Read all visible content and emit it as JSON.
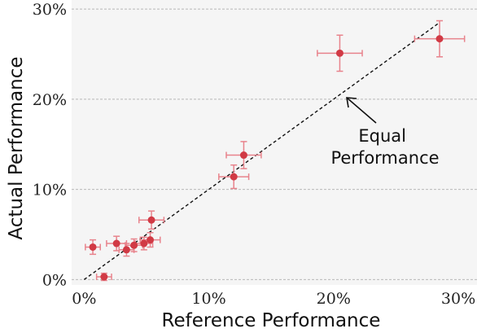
{
  "chart_data": {
    "type": "scatter",
    "xlabel": "Reference Performance",
    "ylabel": "Actual Performance",
    "xlim": [
      -1,
      31.5
    ],
    "ylim": [
      -0.6,
      31
    ],
    "x_ticks": [
      0,
      10,
      20,
      30
    ],
    "y_ticks": [
      0,
      10,
      20,
      30
    ],
    "x_tick_labels": [
      "0%",
      "10%",
      "20%",
      "30%"
    ],
    "y_tick_labels": [
      "0%",
      "10%",
      "20%",
      "30%"
    ],
    "grid": "horizontal dashed",
    "reference_line": {
      "from": [
        0,
        0
      ],
      "to": [
        28.5,
        28.5
      ],
      "style": "dashed"
    },
    "annotation": {
      "lines": [
        "Equal",
        "Performance"
      ],
      "points_to": [
        20.8,
        21
      ]
    },
    "colors": {
      "point": "#d13a45",
      "errorbar": "#e8838c",
      "background": "#f5f5f5",
      "grid": "#b8b8b8"
    },
    "points": [
      {
        "x": 0.7,
        "y": 3.6,
        "xerr": 0.6,
        "yerr": 0.8
      },
      {
        "x": 1.6,
        "y": 0.3,
        "xerr": 0.6,
        "yerr": 0.4
      },
      {
        "x": 2.6,
        "y": 4.0,
        "xerr": 0.8,
        "yerr": 0.8
      },
      {
        "x": 3.4,
        "y": 3.3,
        "xerr": 0.6,
        "yerr": 0.7
      },
      {
        "x": 4.0,
        "y": 3.8,
        "xerr": 0.7,
        "yerr": 0.7
      },
      {
        "x": 4.8,
        "y": 4.0,
        "xerr": 0.7,
        "yerr": 0.7
      },
      {
        "x": 5.3,
        "y": 4.4,
        "xerr": 0.8,
        "yerr": 0.8
      },
      {
        "x": 5.4,
        "y": 6.6,
        "xerr": 1.0,
        "yerr": 1.0
      },
      {
        "x": 12.0,
        "y": 11.4,
        "xerr": 1.2,
        "yerr": 1.3
      },
      {
        "x": 12.8,
        "y": 13.8,
        "xerr": 1.4,
        "yerr": 1.5
      },
      {
        "x": 20.5,
        "y": 25.1,
        "xerr": 1.8,
        "yerr": 2.0
      },
      {
        "x": 28.5,
        "y": 26.7,
        "xerr": 2.0,
        "yerr": 2.0
      }
    ]
  }
}
